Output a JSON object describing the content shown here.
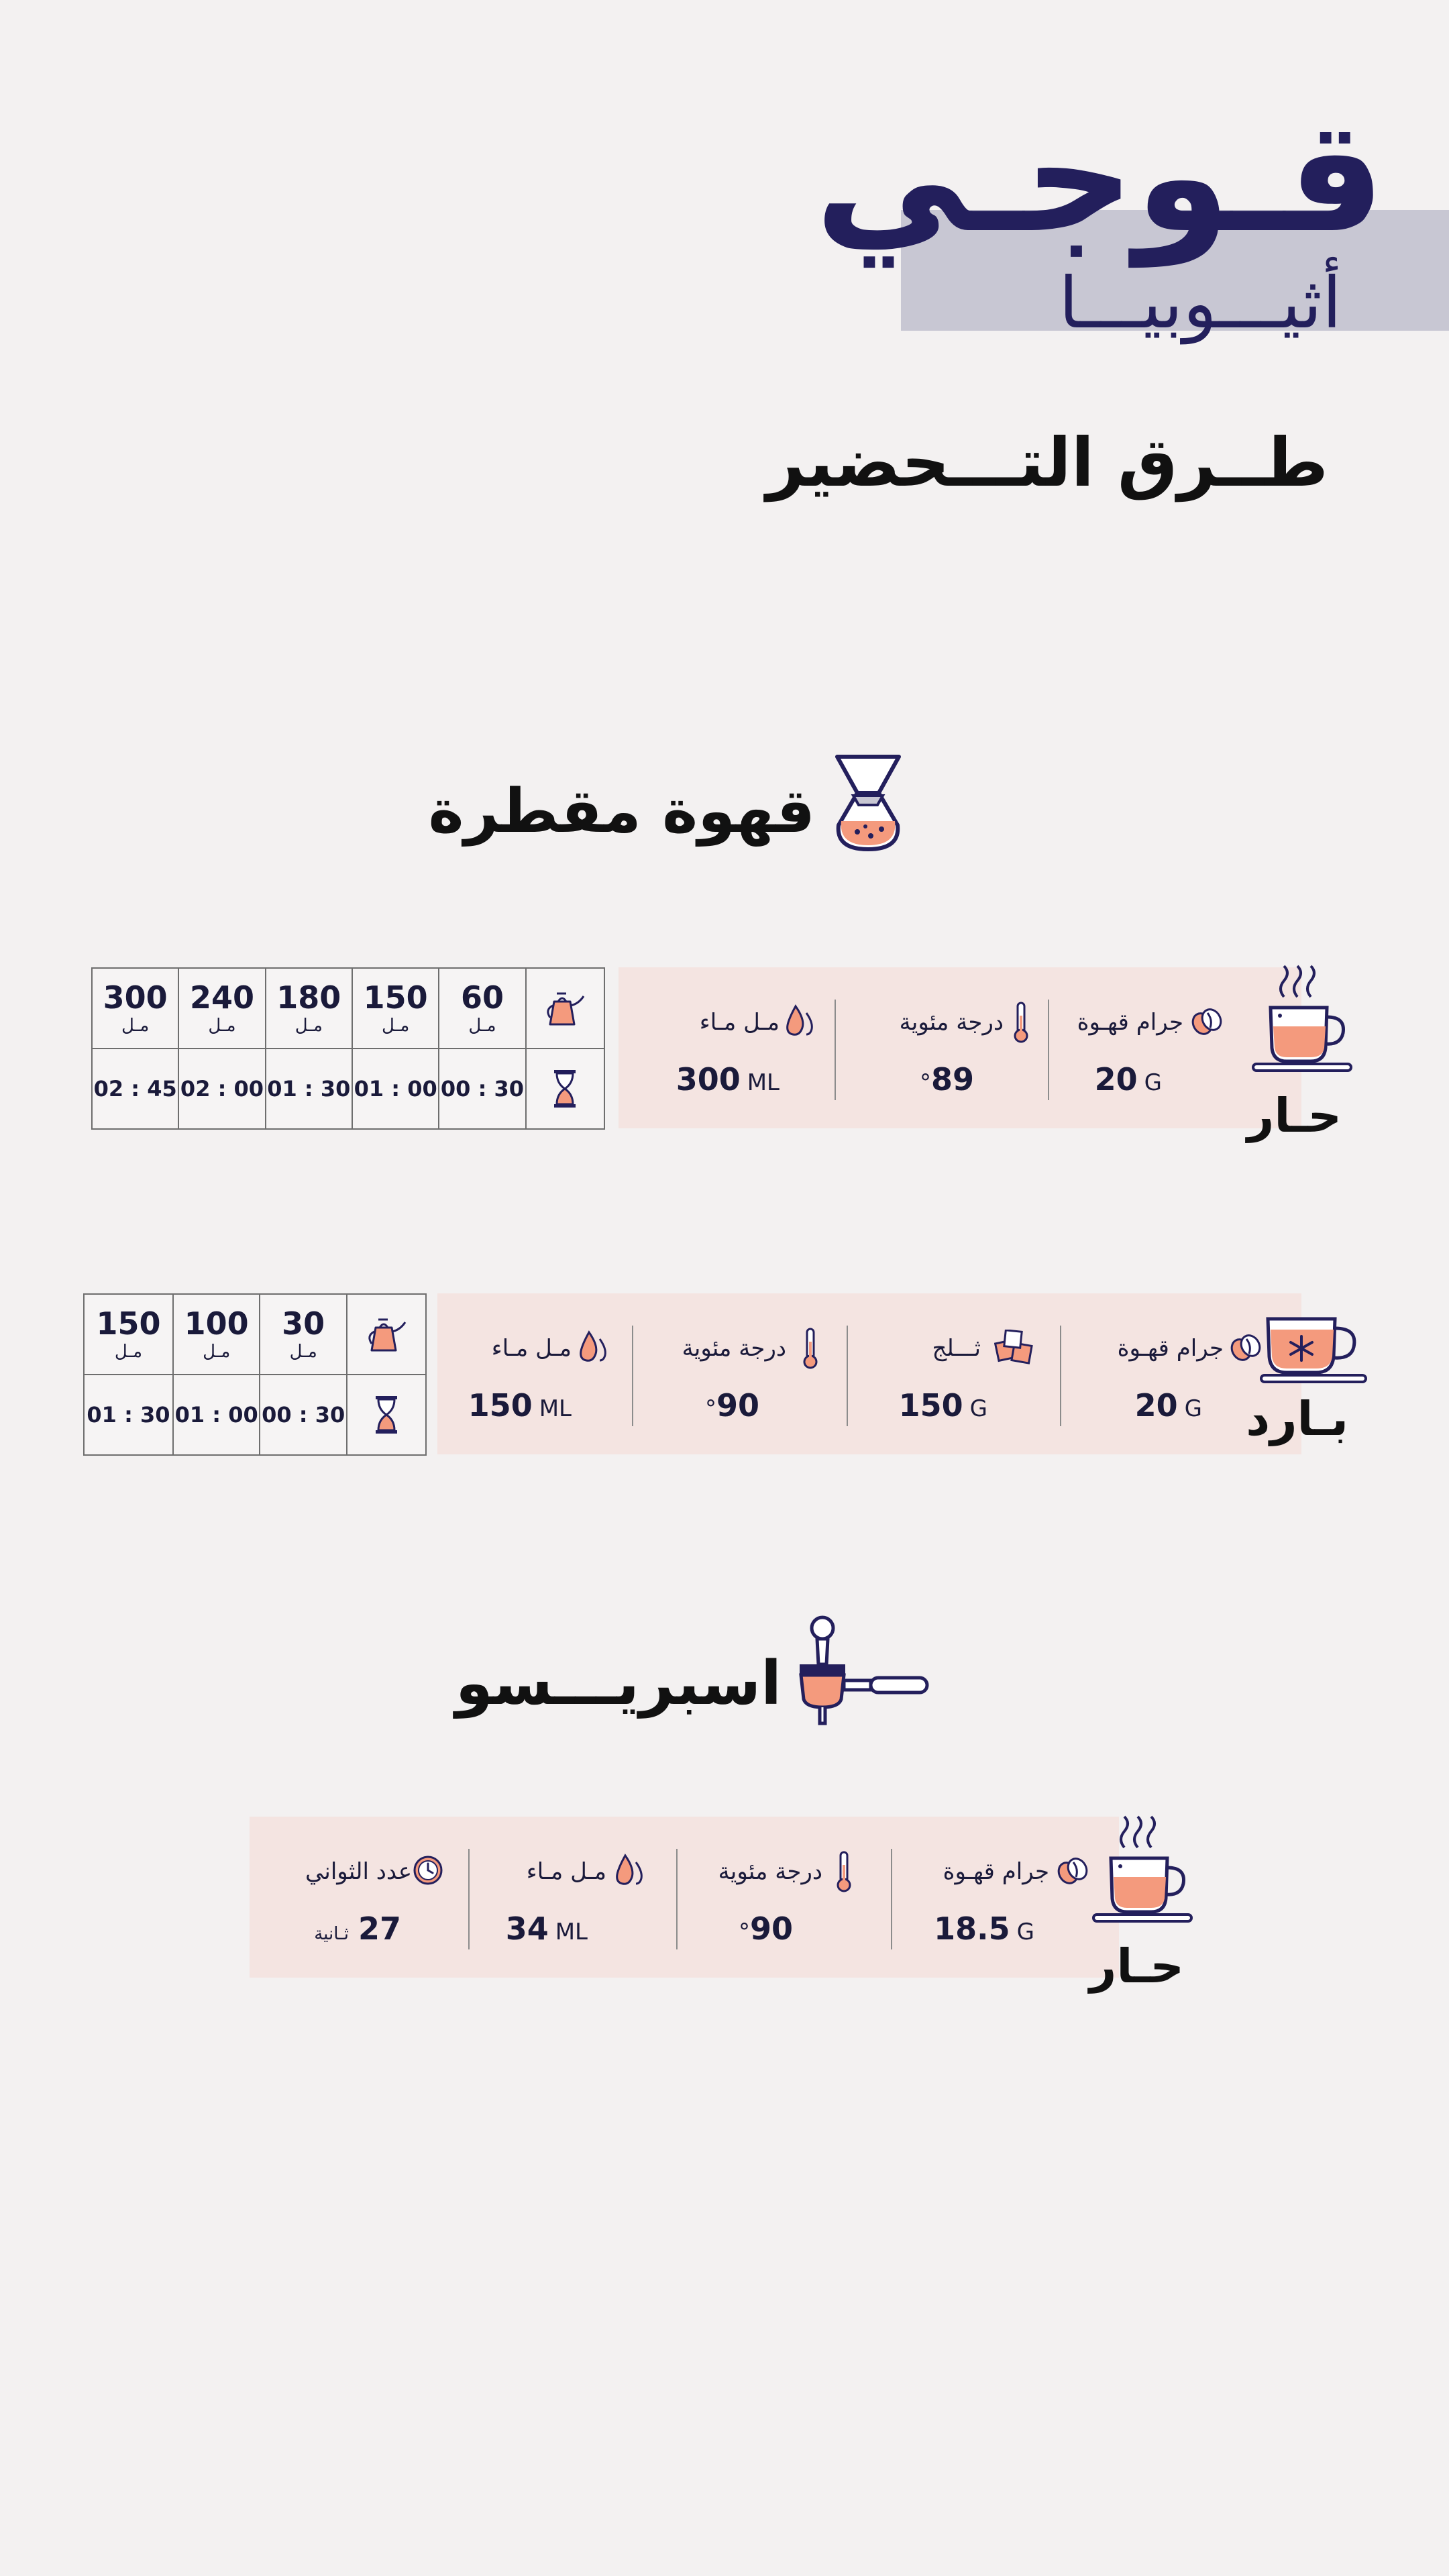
{
  "header": {
    "brand": "قـوجـي",
    "origin": "أثيـــوبيـــا",
    "methods_heading": "طــرق التـــحضير"
  },
  "drip": {
    "title": "قهوة مقطرة",
    "hot": {
      "mode": "حـار",
      "stats": [
        {
          "label": "جرام قهـوة",
          "value": "20",
          "unit": "G",
          "icon": "coffee-bean-icon"
        },
        {
          "label": "درجة مئوية",
          "value": "89",
          "unit": "°",
          "icon": "thermometer-icon"
        },
        {
          "label": "مـل مـاء",
          "value": "300",
          "unit": "ML",
          "icon": "water-drop-icon"
        }
      ],
      "steps": {
        "volumes": [
          "60",
          "150",
          "180",
          "240",
          "300"
        ],
        "unit": "مـل",
        "times": [
          "00 : 30",
          "01 : 00",
          "01 : 30",
          "02 : 00",
          "02 : 45"
        ]
      }
    },
    "cold": {
      "mode": "بـارد",
      "stats": [
        {
          "label": "جرام قهـوة",
          "value": "20",
          "unit": "G",
          "icon": "coffee-bean-icon"
        },
        {
          "label": "ثـــلج",
          "value": "150",
          "unit": "G",
          "icon": "ice-cubes-icon"
        },
        {
          "label": "درجة مئوية",
          "value": "90",
          "unit": "°",
          "icon": "thermometer-icon"
        },
        {
          "label": "مـل مـاء",
          "value": "150",
          "unit": "ML",
          "icon": "water-drop-icon"
        }
      ],
      "steps": {
        "volumes": [
          "30",
          "100",
          "150"
        ],
        "unit": "مـل",
        "times": [
          "00 : 30",
          "01 : 00",
          "01 : 30"
        ]
      }
    }
  },
  "espresso": {
    "title": "اسبريـــسو",
    "hot": {
      "mode": "حـار",
      "stats": [
        {
          "label": "جرام قهـوة",
          "value": "18.5",
          "unit": "G",
          "icon": "coffee-bean-icon"
        },
        {
          "label": "درجة مئوية",
          "value": "90",
          "unit": "°",
          "icon": "thermometer-icon"
        },
        {
          "label": "مـل مـاء",
          "value": "34",
          "unit": "ML",
          "icon": "water-drop-icon"
        },
        {
          "label": "عدد الثواني",
          "value": "27",
          "unit": "ثـانية",
          "icon": "clock-icon"
        }
      ]
    }
  },
  "colors": {
    "navy": "#231f5c",
    "band": "#c8c7d3",
    "card": "#f4e4e1",
    "accent": "#f49a7d"
  }
}
